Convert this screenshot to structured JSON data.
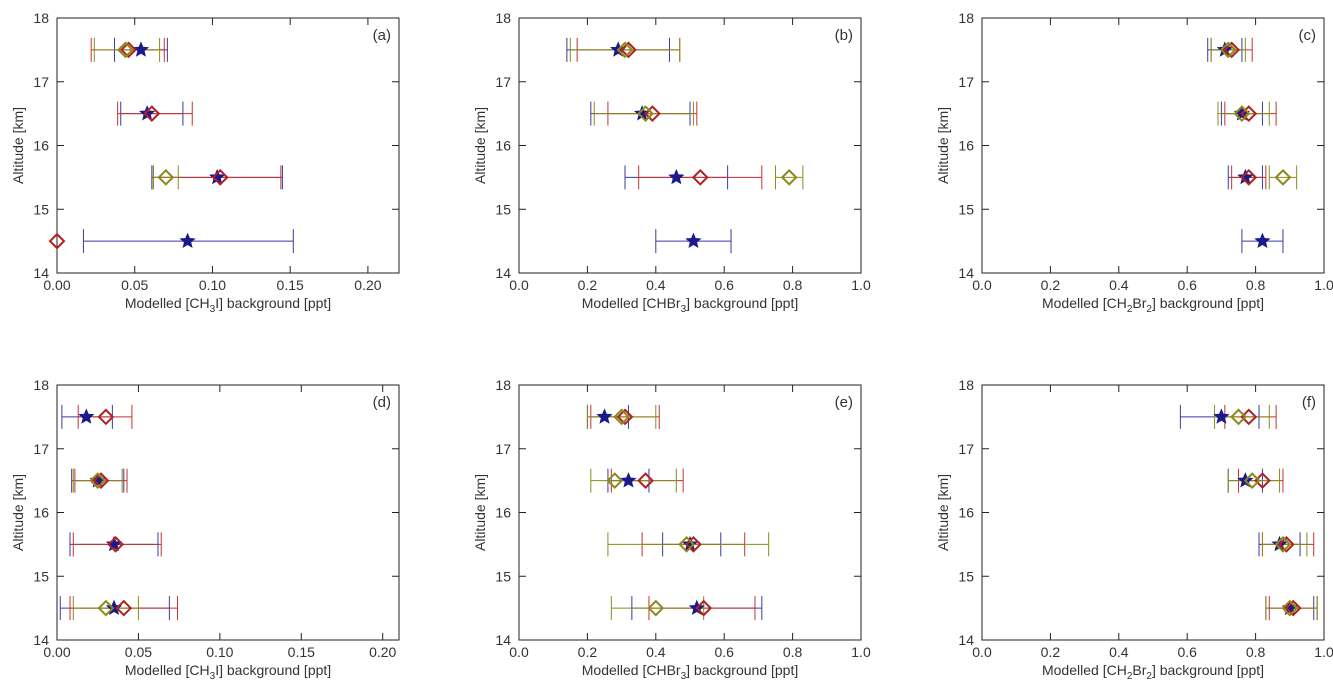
{
  "colors": {
    "star": "#1a1a8c",
    "diamond_red": "#b22222",
    "diamond_olive": "#8b8b1a",
    "err_blue": "#3a3aa0",
    "err_red": "#c83030",
    "err_olive": "#8b8b1a"
  },
  "legend_markers": [
    "star",
    "diamond"
  ],
  "chart_data": [
    {
      "type": "scatter",
      "panel_label": "(a)",
      "xlabel": "Modelled [CH3I] background [ppt]",
      "xlabel_parts": [
        "Modelled [CH",
        "3",
        "I] background [ppt]"
      ],
      "ylabel": "Altitude [km]",
      "xlim": [
        0,
        0.22
      ],
      "ylim": [
        14,
        18
      ],
      "xticks": [
        0.0,
        0.05,
        0.1,
        0.15,
        0.2
      ],
      "xtick_labels": [
        "0.00",
        "0.05",
        "0.10",
        "0.15",
        "0.20"
      ],
      "yticks": [
        14,
        15,
        16,
        17,
        18
      ],
      "ytick_labels": [
        "14",
        "15",
        "16",
        "17",
        "18"
      ],
      "series": [
        {
          "marker": "star",
          "color": "#1a1a8c",
          "err_color": "#3a3aa0",
          "points": [
            {
              "y": 17.5,
              "x": 0.054,
              "xerr": [
                0.037,
                0.071
              ]
            },
            {
              "y": 16.5,
              "x": 0.058,
              "xerr": [
                0.041,
                0.081
              ]
            },
            {
              "y": 15.5,
              "x": 0.103,
              "xerr": [
                0.061,
                0.145
              ]
            },
            {
              "y": 14.5,
              "x": 0.084,
              "xerr": [
                0.017,
                0.152
              ]
            }
          ]
        },
        {
          "marker": "diamond",
          "color": "#b22222",
          "err_color": "#c83030",
          "points": [
            {
              "y": 17.5,
              "x": 0.046,
              "xerr": [
                0.022,
                0.069
              ]
            },
            {
              "y": 16.5,
              "x": 0.061,
              "xerr": [
                0.039,
                0.087
              ]
            },
            {
              "y": 15.5,
              "x": 0.105,
              "xerr": [
                0.062,
                0.144
              ]
            },
            {
              "y": 14.5,
              "x": 0.0,
              "xerr": [
                0.0,
                0.0
              ]
            }
          ]
        },
        {
          "marker": "diamond",
          "color": "#8b8b1a",
          "err_color": "#8b8b1a",
          "points": [
            {
              "y": 17.5,
              "x": 0.044,
              "xerr": [
                0.024,
                0.066
              ]
            },
            {
              "y": 15.5,
              "x": 0.07,
              "xerr": [
                0.062,
                0.078
              ]
            }
          ]
        }
      ]
    },
    {
      "type": "scatter",
      "panel_label": "(b)",
      "xlabel": "Modelled [CHBr3] background [ppt]",
      "xlabel_parts": [
        "Modelled [CHBr",
        "3",
        "] background [ppt]"
      ],
      "ylabel": "Altitude [km]",
      "xlim": [
        0,
        1.0
      ],
      "ylim": [
        14,
        18
      ],
      "xticks": [
        0.0,
        0.2,
        0.4,
        0.6,
        0.8,
        1.0
      ],
      "xtick_labels": [
        "0.0",
        "0.2",
        "0.4",
        "0.6",
        "0.8",
        "1.0"
      ],
      "yticks": [
        14,
        15,
        16,
        17,
        18
      ],
      "ytick_labels": [
        "14",
        "15",
        "16",
        "17",
        "18"
      ],
      "series": [
        {
          "marker": "star",
          "color": "#1a1a8c",
          "err_color": "#3a3aa0",
          "points": [
            {
              "y": 17.5,
              "x": 0.29,
              "xerr": [
                0.14,
                0.44
              ]
            },
            {
              "y": 16.5,
              "x": 0.36,
              "xerr": [
                0.21,
                0.5
              ]
            },
            {
              "y": 15.5,
              "x": 0.46,
              "xerr": [
                0.31,
                0.61
              ]
            },
            {
              "y": 14.5,
              "x": 0.51,
              "xerr": [
                0.4,
                0.62
              ]
            }
          ]
        },
        {
          "marker": "diamond",
          "color": "#b22222",
          "err_color": "#c83030",
          "points": [
            {
              "y": 17.5,
              "x": 0.32,
              "xerr": [
                0.17,
                0.47
              ]
            },
            {
              "y": 16.5,
              "x": 0.39,
              "xerr": [
                0.26,
                0.52
              ]
            },
            {
              "y": 15.5,
              "x": 0.53,
              "xerr": [
                0.35,
                0.71
              ]
            }
          ]
        },
        {
          "marker": "diamond",
          "color": "#8b8b1a",
          "err_color": "#8b8b1a",
          "points": [
            {
              "y": 17.5,
              "x": 0.31,
              "xerr": [
                0.15,
                0.47
              ]
            },
            {
              "y": 16.5,
              "x": 0.37,
              "xerr": [
                0.22,
                0.51
              ]
            },
            {
              "y": 15.5,
              "x": 0.79,
              "xerr": [
                0.75,
                0.83
              ]
            }
          ]
        }
      ]
    },
    {
      "type": "scatter",
      "panel_label": "(c)",
      "xlabel": "Modelled [CH2Br2] background [ppt]",
      "xlabel_parts": [
        "Modelled [CH",
        "2",
        "Br",
        "2",
        "] background [ppt]"
      ],
      "ylabel": "Altitude [km]",
      "xlim": [
        0,
        1.0
      ],
      "ylim": [
        14,
        18
      ],
      "xticks": [
        0.0,
        0.2,
        0.4,
        0.6,
        0.8,
        1.0
      ],
      "xtick_labels": [
        "0.0",
        "0.2",
        "0.4",
        "0.6",
        "0.8",
        "1.0"
      ],
      "yticks": [
        14,
        15,
        16,
        17,
        18
      ],
      "ytick_labels": [
        "14",
        "15",
        "16",
        "17",
        "18"
      ],
      "series": [
        {
          "marker": "star",
          "color": "#1a1a8c",
          "err_color": "#3a3aa0",
          "points": [
            {
              "y": 17.5,
              "x": 0.71,
              "xerr": [
                0.66,
                0.76
              ]
            },
            {
              "y": 16.5,
              "x": 0.76,
              "xerr": [
                0.7,
                0.82
              ]
            },
            {
              "y": 15.5,
              "x": 0.77,
              "xerr": [
                0.72,
                0.82
              ]
            },
            {
              "y": 14.5,
              "x": 0.82,
              "xerr": [
                0.76,
                0.88
              ]
            }
          ]
        },
        {
          "marker": "diamond",
          "color": "#b22222",
          "err_color": "#c83030",
          "points": [
            {
              "y": 17.5,
              "x": 0.73,
              "xerr": [
                0.67,
                0.79
              ]
            },
            {
              "y": 16.5,
              "x": 0.78,
              "xerr": [
                0.71,
                0.86
              ]
            },
            {
              "y": 15.5,
              "x": 0.78,
              "xerr": [
                0.73,
                0.83
              ]
            }
          ]
        },
        {
          "marker": "diamond",
          "color": "#8b8b1a",
          "err_color": "#8b8b1a",
          "points": [
            {
              "y": 17.5,
              "x": 0.72,
              "xerr": [
                0.67,
                0.77
              ]
            },
            {
              "y": 16.5,
              "x": 0.76,
              "xerr": [
                0.69,
                0.84
              ]
            },
            {
              "y": 15.5,
              "x": 0.88,
              "xerr": [
                0.84,
                0.92
              ]
            }
          ]
        }
      ]
    },
    {
      "type": "scatter",
      "panel_label": "(d)",
      "xlabel": "Modelled [CH3I] background [ppt]",
      "xlabel_parts": [
        "Modelled [CH",
        "3",
        "I] background [ppt]"
      ],
      "ylabel": "Altitude [km]",
      "xlim": [
        0,
        0.21
      ],
      "ylim": [
        14,
        18
      ],
      "xticks": [
        0.0,
        0.05,
        0.1,
        0.15,
        0.2
      ],
      "xtick_labels": [
        "0.00",
        "0.05",
        "0.10",
        "0.15",
        "0.20"
      ],
      "yticks": [
        14,
        15,
        16,
        17,
        18
      ],
      "ytick_labels": [
        "14",
        "15",
        "16",
        "17",
        "18"
      ],
      "series": [
        {
          "marker": "star",
          "color": "#1a1a8c",
          "err_color": "#3a3aa0",
          "points": [
            {
              "y": 17.5,
              "x": 0.018,
              "xerr": [
                0.003,
                0.034
              ]
            },
            {
              "y": 16.5,
              "x": 0.025,
              "xerr": [
                0.009,
                0.041
              ]
            },
            {
              "y": 15.5,
              "x": 0.035,
              "xerr": [
                0.008,
                0.062
              ]
            },
            {
              "y": 14.5,
              "x": 0.035,
              "xerr": [
                0.002,
                0.069
              ]
            }
          ]
        },
        {
          "marker": "diamond",
          "color": "#b22222",
          "err_color": "#c83030",
          "points": [
            {
              "y": 17.5,
              "x": 0.03,
              "xerr": [
                0.013,
                0.046
              ]
            },
            {
              "y": 16.5,
              "x": 0.027,
              "xerr": [
                0.011,
                0.043
              ]
            },
            {
              "y": 15.5,
              "x": 0.036,
              "xerr": [
                0.01,
                0.064
              ]
            },
            {
              "y": 14.5,
              "x": 0.041,
              "xerr": [
                0.008,
                0.074
              ]
            }
          ]
        },
        {
          "marker": "diamond",
          "color": "#8b8b1a",
          "err_color": "#8b8b1a",
          "points": [
            {
              "y": 16.5,
              "x": 0.025,
              "xerr": [
                0.01,
                0.04
              ]
            },
            {
              "y": 14.5,
              "x": 0.03,
              "xerr": [
                0.01,
                0.05
              ]
            }
          ]
        }
      ]
    },
    {
      "type": "scatter",
      "panel_label": "(e)",
      "xlabel": "Modelled [CHBr3] background [ppt]",
      "xlabel_parts": [
        "Modelled [CHBr",
        "3",
        "] background [ppt]"
      ],
      "ylabel": "Altitude [km]",
      "xlim": [
        0,
        1.0
      ],
      "ylim": [
        14,
        18
      ],
      "xticks": [
        0.0,
        0.2,
        0.4,
        0.6,
        0.8,
        1.0
      ],
      "xtick_labels": [
        "0.0",
        "0.2",
        "0.4",
        "0.6",
        "0.8",
        "1.0"
      ],
      "yticks": [
        14,
        15,
        16,
        17,
        18
      ],
      "ytick_labels": [
        "14",
        "15",
        "16",
        "17",
        "18"
      ],
      "series": [
        {
          "marker": "star",
          "color": "#1a1a8c",
          "err_color": "#3a3aa0",
          "points": [
            {
              "y": 17.5,
              "x": 0.25,
              "xerr": [
                0.2,
                0.32
              ]
            },
            {
              "y": 16.5,
              "x": 0.32,
              "xerr": [
                0.26,
                0.38
              ]
            },
            {
              "y": 15.5,
              "x": 0.5,
              "xerr": [
                0.42,
                0.59
              ]
            },
            {
              "y": 14.5,
              "x": 0.52,
              "xerr": [
                0.33,
                0.71
              ]
            }
          ]
        },
        {
          "marker": "diamond",
          "color": "#b22222",
          "err_color": "#c83030",
          "points": [
            {
              "y": 17.5,
              "x": 0.31,
              "xerr": [
                0.21,
                0.41
              ]
            },
            {
              "y": 16.5,
              "x": 0.37,
              "xerr": [
                0.27,
                0.48
              ]
            },
            {
              "y": 15.5,
              "x": 0.51,
              "xerr": [
                0.36,
                0.66
              ]
            },
            {
              "y": 14.5,
              "x": 0.54,
              "xerr": [
                0.38,
                0.69
              ]
            }
          ]
        },
        {
          "marker": "diamond",
          "color": "#8b8b1a",
          "err_color": "#8b8b1a",
          "points": [
            {
              "y": 17.5,
              "x": 0.3,
              "xerr": [
                0.2,
                0.4
              ]
            },
            {
              "y": 16.5,
              "x": 0.28,
              "xerr": [
                0.21,
                0.46
              ]
            },
            {
              "y": 15.5,
              "x": 0.49,
              "xerr": [
                0.26,
                0.73
              ]
            },
            {
              "y": 14.5,
              "x": 0.4,
              "xerr": [
                0.27,
                0.54
              ]
            }
          ]
        }
      ]
    },
    {
      "type": "scatter",
      "panel_label": "(f)",
      "xlabel": "Modelled [CH2Br2] background [ppt]",
      "xlabel_parts": [
        "Modelled [CH",
        "2",
        "Br",
        "2",
        "] background [ppt]"
      ],
      "ylabel": "Altitude [km]",
      "xlim": [
        0,
        1.0
      ],
      "ylim": [
        14,
        18
      ],
      "xticks": [
        0.0,
        0.2,
        0.4,
        0.6,
        0.8,
        1.0
      ],
      "xtick_labels": [
        "0.0",
        "0.2",
        "0.4",
        "0.6",
        "0.8",
        "1.0"
      ],
      "yticks": [
        14,
        15,
        16,
        17,
        18
      ],
      "ytick_labels": [
        "14",
        "15",
        "16",
        "17",
        "18"
      ],
      "series": [
        {
          "marker": "star",
          "color": "#1a1a8c",
          "err_color": "#3a3aa0",
          "points": [
            {
              "y": 17.5,
              "x": 0.7,
              "xerr": [
                0.58,
                0.81
              ]
            },
            {
              "y": 16.5,
              "x": 0.77,
              "xerr": [
                0.72,
                0.82
              ]
            },
            {
              "y": 15.5,
              "x": 0.87,
              "xerr": [
                0.81,
                0.93
              ]
            },
            {
              "y": 14.5,
              "x": 0.9,
              "xerr": [
                0.83,
                0.97
              ]
            }
          ]
        },
        {
          "marker": "diamond",
          "color": "#b22222",
          "err_color": "#c83030",
          "points": [
            {
              "y": 17.5,
              "x": 0.78,
              "xerr": [
                0.71,
                0.86
              ]
            },
            {
              "y": 16.5,
              "x": 0.82,
              "xerr": [
                0.75,
                0.88
              ]
            },
            {
              "y": 15.5,
              "x": 0.89,
              "xerr": [
                0.82,
                0.97
              ]
            },
            {
              "y": 14.5,
              "x": 0.91,
              "xerr": [
                0.84,
                0.98
              ]
            }
          ]
        },
        {
          "marker": "diamond",
          "color": "#8b8b1a",
          "err_color": "#8b8b1a",
          "points": [
            {
              "y": 17.5,
              "x": 0.75,
              "xerr": [
                0.68,
                0.84
              ]
            },
            {
              "y": 16.5,
              "x": 0.79,
              "xerr": [
                0.72,
                0.87
              ]
            },
            {
              "y": 15.5,
              "x": 0.88,
              "xerr": [
                0.82,
                0.95
              ]
            },
            {
              "y": 14.5,
              "x": 0.9,
              "xerr": [
                0.83,
                0.98
              ]
            }
          ]
        }
      ]
    }
  ]
}
